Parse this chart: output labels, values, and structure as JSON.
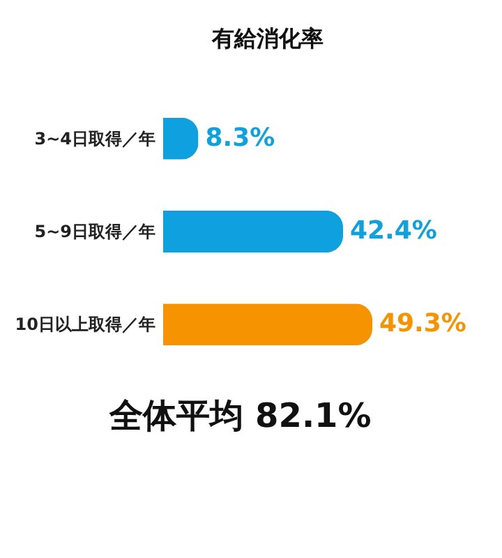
{
  "chart_data": {
    "type": "bar",
    "orientation": "horizontal",
    "title": "有給消化率",
    "categories": [
      "3~4日取得／年",
      "5~9日取得／年",
      "10日以上取得／年"
    ],
    "values": [
      8.3,
      42.4,
      49.3
    ],
    "colors": [
      "#0fa0e0",
      "#0fa0e0",
      "#f59300"
    ],
    "value_labels": [
      "8.3%",
      "42.4%",
      "49.3%"
    ],
    "annotations": [
      "全体平均 82.1%"
    ]
  }
}
